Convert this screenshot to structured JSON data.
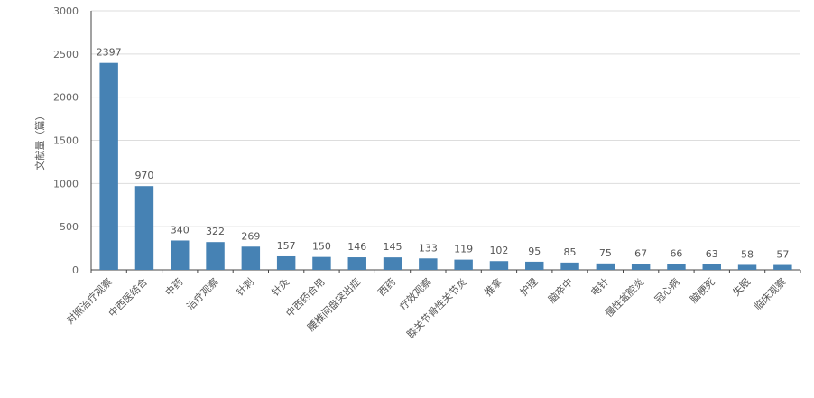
{
  "chart_data": {
    "type": "bar",
    "title": "",
    "xlabel": "",
    "ylabel": "文献量（篇）",
    "ylim": [
      0,
      3000
    ],
    "yticks": [
      0,
      500,
      1000,
      1500,
      2000,
      2500,
      3000
    ],
    "grid": true,
    "bar_color": "#4682b4",
    "categories": [
      "对照治疗观察",
      "中西医结合",
      "中药",
      "治疗观察",
      "针刺",
      "针灸",
      "中西药合用",
      "腰椎间盘突出症",
      "西药",
      "疗效观察",
      "膝关节骨性关节炎",
      "推拿",
      "护理",
      "脑卒中",
      "电针",
      "慢性盆腔炎",
      "冠心病",
      "脑梗死",
      "失眠",
      "临床观察"
    ],
    "values": [
      2397,
      970,
      340,
      322,
      269,
      157,
      150,
      146,
      145,
      133,
      119,
      102,
      95,
      85,
      75,
      67,
      66,
      63,
      58,
      57
    ]
  }
}
